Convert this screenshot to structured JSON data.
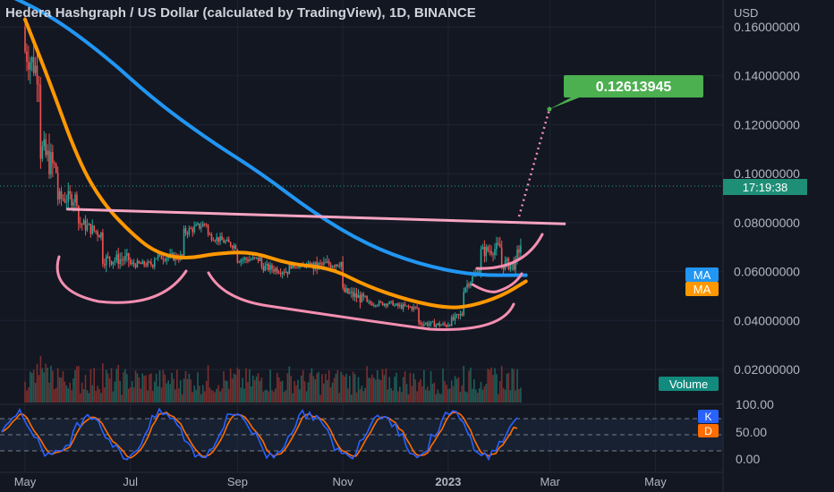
{
  "header": {
    "title": "Hedera Hashgraph / US Dollar (calculated by TradingView), 1D, BINANCE",
    "currency": "USD"
  },
  "price_axis_labels": [
    "0.16000000",
    "0.14000000",
    "0.12000000",
    "0.10000000",
    "0.08000000",
    "0.06000000",
    "0.04000000",
    "0.02000000"
  ],
  "osc_axis_labels": [
    "100.00",
    "50.00",
    "0.00"
  ],
  "time_labels": [
    "May",
    "Jul",
    "Sep",
    "Nov",
    "2023",
    "Mar",
    "May"
  ],
  "badges": {
    "target_price": "0.12613945",
    "countdown": "17:19:38",
    "ma_blue": "MA",
    "ma_orange": "MA",
    "volume": "Volume",
    "k": "K",
    "d": "D"
  },
  "colors": {
    "background": "#131722",
    "up": "#26a69a",
    "down": "#ef5350",
    "ma_blue": "#2196f3",
    "ma_orange": "#ff9800",
    "annotation_pink": "#f48fb1",
    "target_green": "#4caf50",
    "stoch_k": "#2962ff",
    "stoch_d": "#ff6d00",
    "text": "#d1d4dc"
  },
  "chart_data": {
    "type": "candlestick",
    "symbol": "HBAR/USD",
    "interval": "1D",
    "ylim": [
      0.0,
      0.168
    ],
    "series": [
      {
        "name": "MA",
        "color": "#2196f3",
        "points": [
          [
            "2022-04-15",
            0.175
          ],
          [
            "2022-05-15",
            0.165
          ],
          [
            "2022-06-15",
            0.149
          ],
          [
            "2022-07-15",
            0.13
          ],
          [
            "2022-08-15",
            0.114
          ],
          [
            "2022-09-15",
            0.1
          ],
          [
            "2022-10-15",
            0.084
          ],
          [
            "2022-11-15",
            0.071
          ],
          [
            "2022-12-15",
            0.063
          ],
          [
            "2023-01-15",
            0.0585
          ],
          [
            "2023-02-15",
            0.0585
          ]
        ]
      },
      {
        "name": "MA",
        "color": "#ff9800",
        "points": [
          [
            "2022-05-01",
            0.163
          ],
          [
            "2022-05-15",
            0.138
          ],
          [
            "2022-06-01",
            0.105
          ],
          [
            "2022-06-15",
            0.088
          ],
          [
            "2022-07-01",
            0.076
          ],
          [
            "2022-07-15",
            0.068
          ],
          [
            "2022-08-01",
            0.065
          ],
          [
            "2022-08-20",
            0.0675
          ],
          [
            "2022-09-10",
            0.068
          ],
          [
            "2022-10-01",
            0.063
          ],
          [
            "2022-10-25",
            0.0615
          ],
          [
            "2022-11-15",
            0.054
          ],
          [
            "2022-12-10",
            0.048
          ],
          [
            "2023-01-01",
            0.045
          ],
          [
            "2023-01-15",
            0.046
          ],
          [
            "2023-02-01",
            0.05
          ],
          [
            "2023-02-15",
            0.056
          ]
        ]
      }
    ],
    "annotations": {
      "resistance_line": [
        [
          "2022-05-25",
          0.0855
        ],
        [
          "2023-03-10",
          0.0795
        ]
      ],
      "projection": [
        [
          "2023-02-15",
          0.094
        ],
        [
          "2023-02-20",
          0.1261
        ]
      ],
      "target": 0.12613945,
      "current_price": 0.0945
    },
    "candles_approx": [
      [
        "2022-05-01",
        0.16,
        0.17,
        0.14,
        0.15
      ],
      [
        "2022-05-10",
        0.14,
        0.15,
        0.1,
        0.11
      ],
      [
        "2022-05-20",
        0.1,
        0.11,
        0.085,
        0.09
      ],
      [
        "2022-06-01",
        0.09,
        0.095,
        0.075,
        0.08
      ],
      [
        "2022-06-15",
        0.075,
        0.08,
        0.06,
        0.065
      ],
      [
        "2022-07-01",
        0.065,
        0.07,
        0.059,
        0.063
      ],
      [
        "2022-07-15",
        0.063,
        0.07,
        0.06,
        0.066
      ],
      [
        "2022-08-01",
        0.066,
        0.078,
        0.064,
        0.076
      ],
      [
        "2022-08-15",
        0.08,
        0.086,
        0.074,
        0.075
      ],
      [
        "2022-09-01",
        0.07,
        0.072,
        0.062,
        0.065
      ],
      [
        "2022-09-15",
        0.065,
        0.073,
        0.06,
        0.062
      ],
      [
        "2022-10-01",
        0.06,
        0.065,
        0.058,
        0.062
      ],
      [
        "2022-10-15",
        0.063,
        0.066,
        0.06,
        0.062
      ],
      [
        "2022-11-01",
        0.064,
        0.067,
        0.05,
        0.052
      ],
      [
        "2022-11-15",
        0.048,
        0.052,
        0.044,
        0.047
      ],
      [
        "2022-12-01",
        0.047,
        0.05,
        0.044,
        0.046
      ],
      [
        "2022-12-15",
        0.045,
        0.047,
        0.038,
        0.039
      ],
      [
        "2023-01-01",
        0.038,
        0.04,
        0.036,
        0.039
      ],
      [
        "2023-01-10",
        0.043,
        0.055,
        0.042,
        0.053
      ],
      [
        "2023-01-20",
        0.062,
        0.07,
        0.059,
        0.068
      ],
      [
        "2023-02-01",
        0.07,
        0.08,
        0.06,
        0.063
      ],
      [
        "2023-02-10",
        0.063,
        0.068,
        0.062,
        0.067
      ],
      [
        "2023-02-15",
        0.077,
        0.095,
        0.075,
        0.094
      ]
    ],
    "stochastic": {
      "k_last": 82,
      "d_last": 62,
      "levels": [
        80,
        50,
        20
      ]
    }
  }
}
